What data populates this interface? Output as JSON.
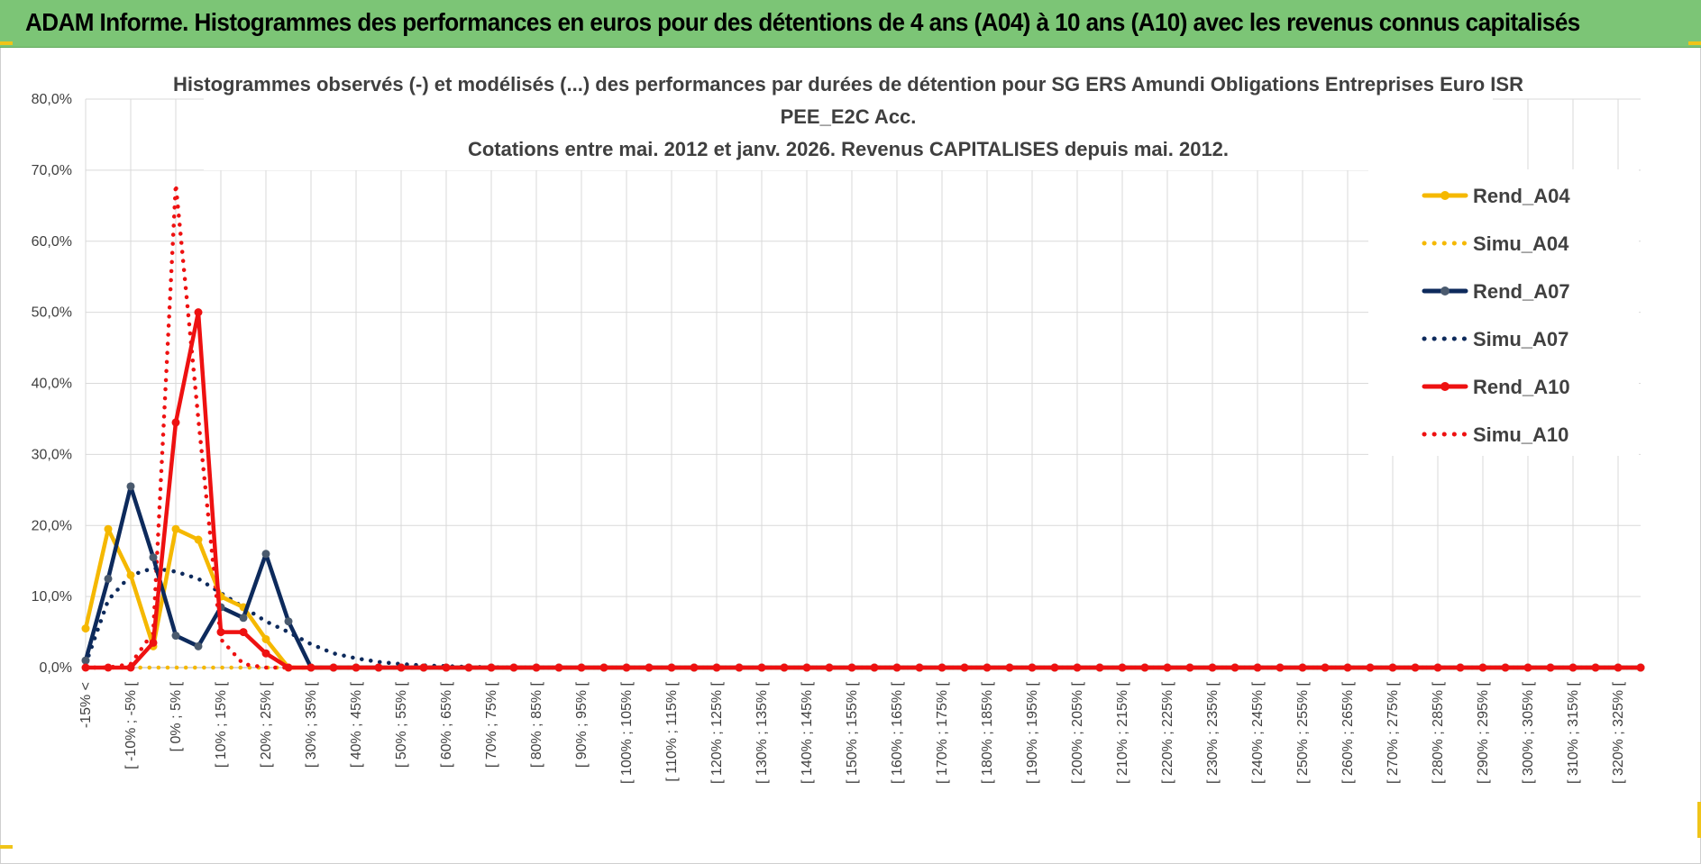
{
  "banner": {
    "title": "ADAM Informe. Histogrammes des performances en euros pour des détentions de 4 ans (A04) à 10 ans (A10) avec les revenus connus capitalisés"
  },
  "colors": {
    "banner_bg": "#7cc576",
    "A04": "#f5b800",
    "A07": "#0d2a5c",
    "A10": "#ee1111",
    "grid": "#d9d9d9"
  },
  "chart_data": {
    "type": "line",
    "title": [
      "Histogrammes observés (-) et modélisés (...) des performances par durées de détention pour SG ERS Amundi Obligations Entreprises Euro ISR",
      "PEE_E2C Acc.",
      "Cotations entre mai. 2012 et janv. 2026. Revenus CAPITALISES depuis mai. 2012."
    ],
    "xlabel": "",
    "ylabel": "",
    "ylim": [
      0,
      80
    ],
    "y_ticks": [
      "0,0%",
      "10,0%",
      "20,0%",
      "30,0%",
      "40,0%",
      "50,0%",
      "60,0%",
      "70,0%",
      "80,0%"
    ],
    "grid": true,
    "legend_position": "top-right",
    "x_tick_labels": [
      "-15% <",
      "[ -10% ; -5% [",
      "[ 0% ; 5% [",
      "[ 10% ; 15% [",
      "[ 20% ; 25% [",
      "[ 30% ; 35% [",
      "[ 40% ; 45% [",
      "[ 50% ; 55% [",
      "[ 60% ; 65% [",
      "[ 70% ; 75% [",
      "[ 80% ; 85% [",
      "[ 90% ; 95% [",
      "[ 100% ; 105% [",
      "[ 110% ; 115% [",
      "[ 120% ; 125% [",
      "[ 130% ; 135% [",
      "[ 140% ; 145% [",
      "[ 150% ; 155% [",
      "[ 160% ; 165% [",
      "[ 170% ; 175% [",
      "[ 180% ; 185% [",
      "[ 190% ; 195% [",
      "[ 200% ; 205% [",
      "[ 210% ; 215% [",
      "[ 220% ; 225% [",
      "[ 230% ; 235% [",
      "[ 240% ; 245% [",
      "[ 250% ; 255% [",
      "[ 260% ; 265% [",
      "[ 270% ; 275% [",
      "[ 280% ; 285% [",
      "[ 290% ; 295% [",
      "[ 300% ; 305% [",
      "[ 310% ; 315% [",
      "[ 320% ; 325% ["
    ],
    "category_count": 70,
    "series": [
      {
        "name": "Rend_A04",
        "style": "solid",
        "color": "#f5b800",
        "values": [
          5.5,
          19.5,
          13,
          3,
          19.5,
          18,
          10,
          8.5,
          4,
          0
        ]
      },
      {
        "name": "Simu_A04",
        "style": "dotted",
        "color": "#f5b800",
        "values": [
          0,
          0,
          0,
          0,
          0,
          0
        ]
      },
      {
        "name": "Rend_A07",
        "style": "solid",
        "color": "#0d2a5c",
        "values": [
          1,
          12.5,
          25.5,
          15.5,
          4.5,
          3,
          8.5,
          7,
          16,
          6.5,
          0
        ]
      },
      {
        "name": "Simu_A07",
        "style": "dotted",
        "color": "#0d2a5c",
        "values": [
          0.5,
          9.5,
          13,
          14,
          13.5,
          12.5,
          10.5,
          8.5,
          6.5,
          5,
          3.3,
          2,
          1.3,
          0.8,
          0.5,
          0.3,
          0.2,
          0.1,
          0.05,
          0.02,
          0,
          0
        ]
      },
      {
        "name": "Rend_A10",
        "style": "solid",
        "color": "#ee1111",
        "values": [
          0,
          0,
          0,
          3.5,
          34.5,
          50,
          5,
          5,
          2,
          0
        ]
      },
      {
        "name": "Simu_A10",
        "style": "dotted",
        "color": "#ee1111",
        "values": [
          0,
          0,
          0.5,
          5,
          68,
          35,
          4,
          0.5,
          0,
          0
        ]
      }
    ]
  }
}
